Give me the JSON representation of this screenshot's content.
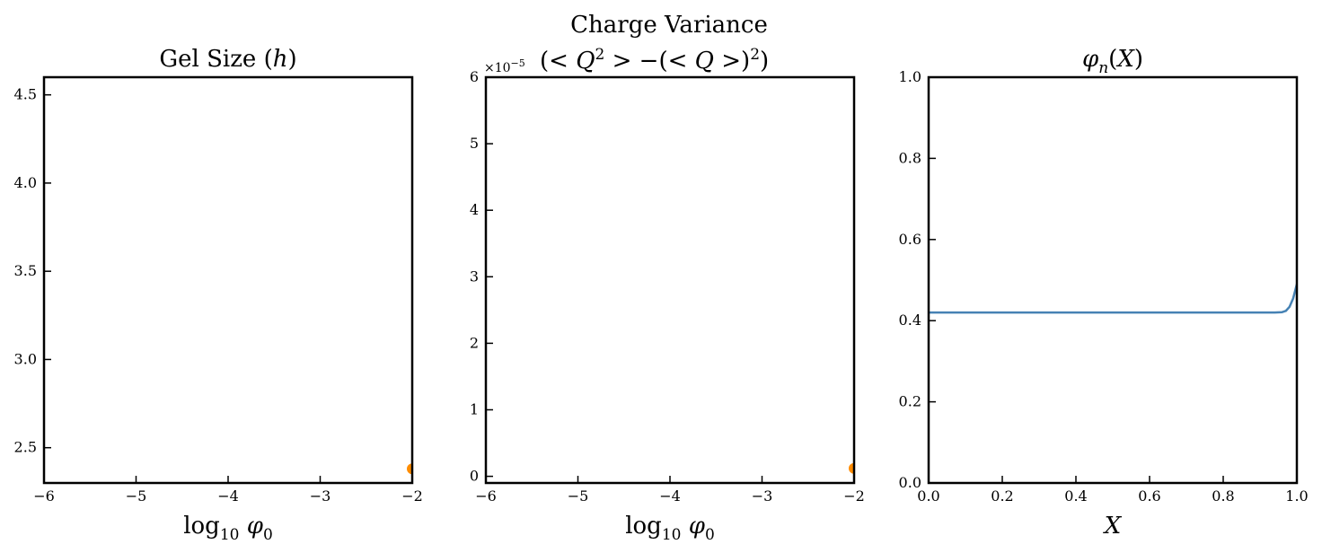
{
  "figure": {
    "suptitle": "Charge Variance"
  },
  "chart_data": [
    {
      "type": "scatter",
      "title": "Gel Size (h)",
      "xlabel": "log10 φ0",
      "ylabel": "",
      "xlim": [
        -6,
        -2
      ],
      "ylim": [
        2.3,
        4.6
      ],
      "xticks": [
        -6,
        -5,
        -4,
        -3,
        -2
      ],
      "xtick_labels": [
        "−6",
        "−5",
        "−4",
        "−3",
        "−2"
      ],
      "yticks": [
        2.5,
        3.0,
        3.5,
        4.0,
        4.5
      ],
      "ytick_labels": [
        "2.5",
        "3.0",
        "3.5",
        "4.0",
        "4.5"
      ],
      "points": [
        {
          "x": -2,
          "y": 2.38
        }
      ],
      "point_color": "#ff8c00",
      "grid": false
    },
    {
      "type": "scatter",
      "title": "(< Q2 > −(< Q >)2)",
      "xlabel": "log10 φ0",
      "ylabel": "",
      "y_offset_label": "×10−5",
      "xlim": [
        -6,
        -2
      ],
      "ylim": [
        -0.1,
        6
      ],
      "xticks": [
        -6,
        -5,
        -4,
        -3,
        -2
      ],
      "xtick_labels": [
        "−6",
        "−5",
        "−4",
        "−3",
        "−2"
      ],
      "yticks": [
        0,
        1,
        2,
        3,
        4,
        5,
        6
      ],
      "ytick_labels": [
        "0",
        "1",
        "2",
        "3",
        "4",
        "5",
        "6"
      ],
      "points": [
        {
          "x": -2,
          "y": 0.12
        }
      ],
      "point_color": "#ff8c00",
      "grid": false
    },
    {
      "type": "line",
      "title": "φn(X)",
      "xlabel": "X",
      "ylabel": "",
      "xlim": [
        0,
        1
      ],
      "ylim": [
        0,
        1
      ],
      "xticks": [
        0,
        0.2,
        0.4,
        0.6,
        0.8,
        1.0
      ],
      "xtick_labels": [
        "0.0",
        "0.2",
        "0.4",
        "0.6",
        "0.8",
        "1.0"
      ],
      "yticks": [
        0,
        0.2,
        0.4,
        0.6,
        0.8,
        1.0
      ],
      "ytick_labels": [
        "0.0",
        "0.2",
        "0.4",
        "0.6",
        "0.8",
        "1.0"
      ],
      "series": [
        {
          "color": "#4682b4",
          "x": [
            0,
            0.1,
            0.2,
            0.3,
            0.4,
            0.5,
            0.6,
            0.7,
            0.8,
            0.9,
            0.94,
            0.96,
            0.97,
            0.98,
            0.99,
            1.0
          ],
          "y": [
            0.42,
            0.42,
            0.42,
            0.42,
            0.42,
            0.42,
            0.42,
            0.42,
            0.42,
            0.42,
            0.42,
            0.421,
            0.424,
            0.434,
            0.455,
            0.49
          ]
        }
      ],
      "grid": false
    }
  ]
}
